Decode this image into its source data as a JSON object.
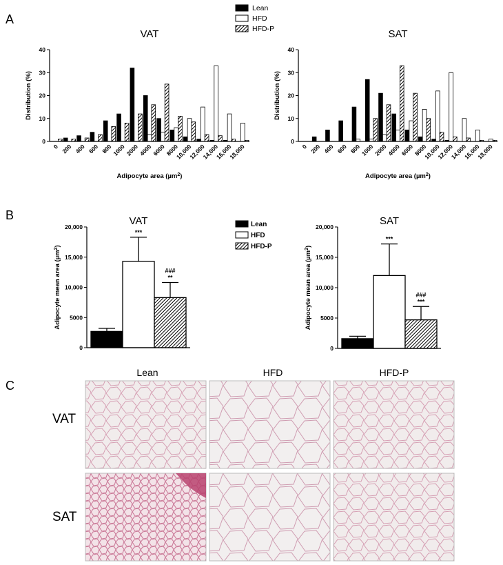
{
  "panel_labels": [
    "A",
    "B",
    "C"
  ],
  "legend": [
    {
      "label": "Lean",
      "fill": "solid-black"
    },
    {
      "label": "HFD",
      "fill": "white"
    },
    {
      "label": "HFD-P",
      "fill": "hatched"
    }
  ],
  "chart_data": [
    {
      "type": "bar",
      "panel": "A",
      "title": "VAT",
      "xlabel": "Adipocyte area (µm²)",
      "ylabel": "Distribution (%)",
      "ylim": [
        0,
        40
      ],
      "yticks": [
        "0",
        "10",
        "20",
        "30",
        "40"
      ],
      "categories": [
        "0",
        "200",
        "400",
        "600",
        "800",
        "1000",
        "2000",
        "4000",
        "6000",
        "8000",
        "10,000",
        "12,000",
        "14,000",
        "16,000",
        "18,000"
      ],
      "series": [
        {
          "name": "Lean",
          "values": [
            0,
            1.5,
            2.5,
            4,
            9,
            12,
            32,
            20,
            10,
            5,
            2,
            1,
            0.5,
            0.5,
            0
          ]
        },
        {
          "name": "HFD",
          "values": [
            0,
            0,
            0,
            0,
            0,
            0,
            0,
            3,
            4,
            6,
            10,
            15,
            33,
            12,
            8
          ]
        },
        {
          "name": "HFD-P",
          "values": [
            1,
            1,
            1.5,
            3,
            6.5,
            8,
            12,
            16,
            25,
            11,
            8.5,
            3,
            2.5,
            1,
            0.5
          ]
        }
      ]
    },
    {
      "type": "bar",
      "panel": "A",
      "title": "SAT",
      "xlabel": "Adipocyte area (µm²)",
      "ylabel": "Distribution (%)",
      "ylim": [
        0,
        40
      ],
      "yticks": [
        "0",
        "10",
        "20",
        "30",
        "40"
      ],
      "categories": [
        "0",
        "200",
        "400",
        "600",
        "800",
        "1000",
        "2000",
        "4000",
        "6000",
        "8000",
        "10,000",
        "12,000",
        "14,000",
        "16,000",
        "18,000"
      ],
      "series": [
        {
          "name": "Lean",
          "values": [
            0,
            2,
            5,
            9,
            15,
            27,
            21,
            12,
            5,
            2,
            1,
            0.5,
            0,
            0,
            0
          ]
        },
        {
          "name": "HFD",
          "values": [
            0,
            0,
            0,
            0,
            1,
            1,
            3,
            5,
            9,
            14,
            22,
            30,
            10,
            5,
            1
          ]
        },
        {
          "name": "HFD-P",
          "values": [
            0,
            0,
            0,
            0,
            0,
            10,
            16,
            33,
            21,
            10,
            4,
            2,
            1.5,
            0.5,
            0.5
          ]
        }
      ]
    },
    {
      "type": "bar",
      "panel": "B",
      "title": "VAT",
      "ylabel": "Adipocyte mean area (µm²)",
      "ylim": [
        0,
        20000
      ],
      "yticks": [
        "0",
        "5000",
        "10,000",
        "15,000",
        "20,000"
      ],
      "categories": [
        "Lean",
        "HFD",
        "HFD-P"
      ],
      "values": [
        2700,
        14300,
        8300
      ],
      "errors": [
        500,
        4000,
        2500
      ],
      "annotations": [
        [],
        [
          "***"
        ],
        [
          "###",
          "**"
        ]
      ]
    },
    {
      "type": "bar",
      "panel": "B",
      "title": "SAT",
      "ylabel": "Adipocyte mean area (µm²)",
      "ylim": [
        0,
        20000
      ],
      "yticks": [
        "0",
        "5000",
        "10,000",
        "15,000",
        "20,000"
      ],
      "categories": [
        "Lean",
        "HFD",
        "HFD-P"
      ],
      "values": [
        1600,
        12000,
        4700
      ],
      "errors": [
        400,
        5200,
        2200
      ],
      "annotations": [
        [],
        [
          "***"
        ],
        [
          "###",
          "***"
        ]
      ]
    }
  ],
  "histology": {
    "columns": [
      "Lean",
      "HFD",
      "HFD-P"
    ],
    "rows": [
      "VAT",
      "SAT"
    ]
  }
}
